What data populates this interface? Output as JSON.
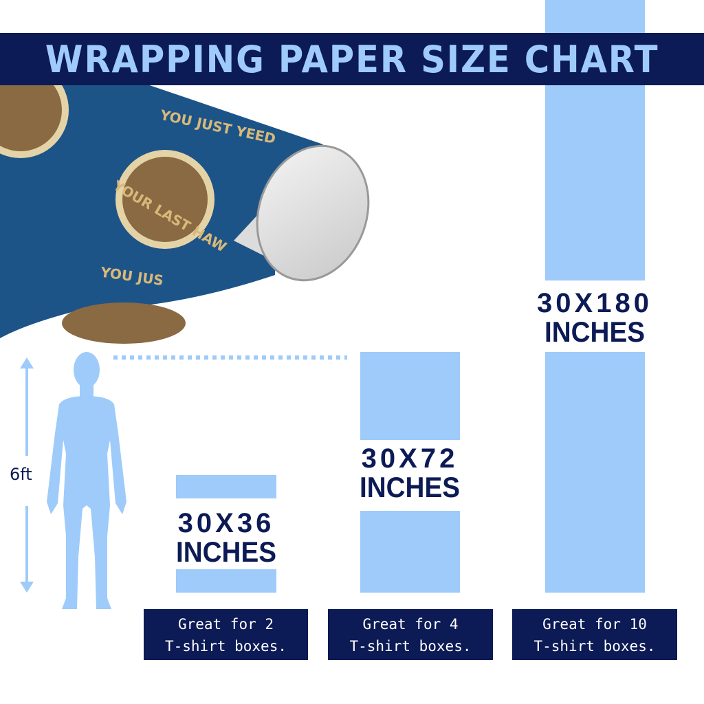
{
  "title": "WRAPPING PAPER SIZE CHART",
  "colors": {
    "navy": "#0c1a55",
    "light_blue": "#9ecbfa",
    "paper_blue": "#1d5488",
    "paper_text": "#d8b97a"
  },
  "artwork": {
    "pattern_text": [
      "YOU JUST YEED",
      "YOUR LAST HAW"
    ]
  },
  "person": {
    "height_label": "6ft"
  },
  "sizes": [
    {
      "dimensions": "30X36",
      "unit": "INCHES",
      "note_line1": "Great for 2",
      "note_line2": "T-shirt boxes."
    },
    {
      "dimensions": "30X72",
      "unit": "INCHES",
      "note_line1": "Great for 4",
      "note_line2": "T-shirt boxes."
    },
    {
      "dimensions": "30X180",
      "unit": "INCHES",
      "note_line1": "Great for 10",
      "note_line2": "T-shirt boxes."
    }
  ]
}
